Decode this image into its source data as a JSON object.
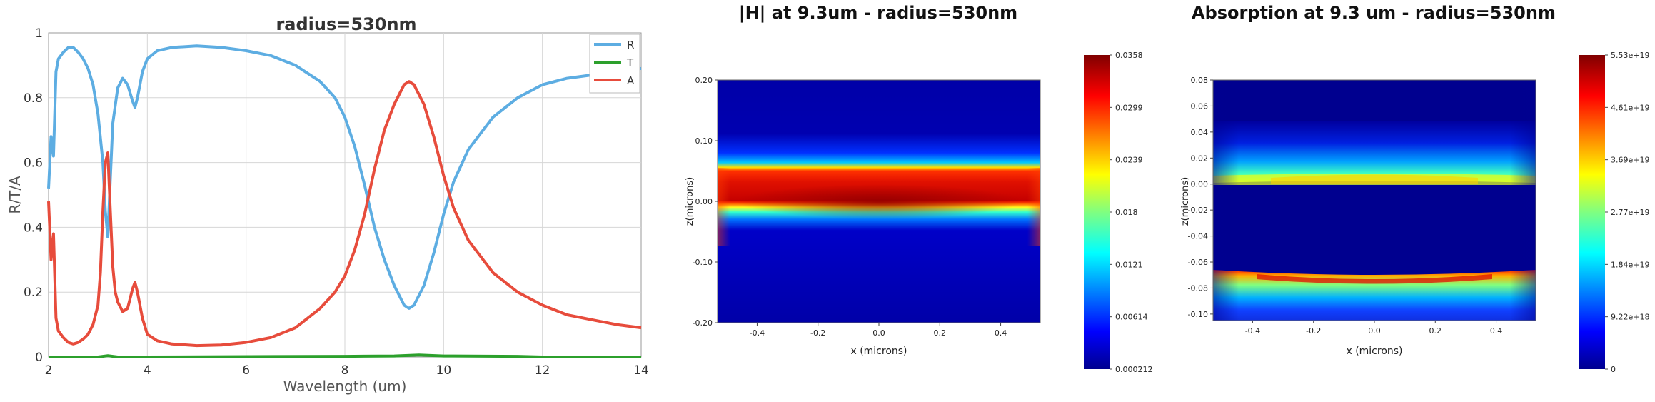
{
  "chart_data": [
    {
      "type": "line",
      "title": "radius=530nm",
      "xlabel": "Wavelength (um)",
      "ylabel": "R/T/A",
      "xlim": [
        2,
        14
      ],
      "ylim": [
        0,
        1
      ],
      "xticks": [
        "2",
        "4",
        "6",
        "8",
        "10",
        "12",
        "14"
      ],
      "yticks": [
        "0",
        "0.2",
        "0.4",
        "0.6",
        "0.8",
        "1"
      ],
      "grid": true,
      "legend": "top-right",
      "series": [
        {
          "name": "R",
          "color": "#5dade2",
          "x": [
            2.0,
            2.05,
            2.1,
            2.15,
            2.2,
            2.3,
            2.4,
            2.5,
            2.6,
            2.7,
            2.8,
            2.9,
            3.0,
            3.1,
            3.15,
            3.2,
            3.25,
            3.3,
            3.4,
            3.5,
            3.6,
            3.7,
            3.75,
            3.8,
            3.9,
            4.0,
            4.2,
            4.5,
            5.0,
            5.5,
            6.0,
            6.5,
            7.0,
            7.5,
            7.8,
            8.0,
            8.2,
            8.4,
            8.6,
            8.8,
            9.0,
            9.2,
            9.3,
            9.4,
            9.6,
            9.8,
            10.0,
            10.2,
            10.5,
            11.0,
            11.5,
            12.0,
            12.5,
            13.0,
            13.5,
            14.0
          ],
          "y": [
            0.52,
            0.68,
            0.62,
            0.88,
            0.92,
            0.94,
            0.955,
            0.955,
            0.94,
            0.92,
            0.89,
            0.84,
            0.75,
            0.6,
            0.45,
            0.37,
            0.55,
            0.72,
            0.83,
            0.86,
            0.84,
            0.79,
            0.77,
            0.8,
            0.88,
            0.92,
            0.945,
            0.955,
            0.96,
            0.955,
            0.945,
            0.93,
            0.9,
            0.85,
            0.8,
            0.74,
            0.65,
            0.53,
            0.4,
            0.3,
            0.22,
            0.16,
            0.15,
            0.16,
            0.22,
            0.32,
            0.44,
            0.54,
            0.64,
            0.74,
            0.8,
            0.84,
            0.86,
            0.87,
            0.88,
            0.89
          ]
        },
        {
          "name": "T",
          "color": "#2ca02c",
          "x": [
            2,
            3,
            3.2,
            3.4,
            4,
            8,
            9,
            9.5,
            10,
            11.5,
            12,
            14
          ],
          "y": [
            0,
            0,
            0.004,
            0,
            0,
            0.002,
            0.003,
            0.006,
            0.003,
            0.002,
            0,
            0
          ]
        },
        {
          "name": "A",
          "color": "#e74c3c",
          "x": [
            2.0,
            2.05,
            2.1,
            2.15,
            2.2,
            2.3,
            2.4,
            2.5,
            2.6,
            2.7,
            2.8,
            2.9,
            3.0,
            3.05,
            3.1,
            3.15,
            3.2,
            3.25,
            3.3,
            3.35,
            3.4,
            3.5,
            3.6,
            3.7,
            3.75,
            3.8,
            3.9,
            4.0,
            4.2,
            4.5,
            5.0,
            5.5,
            6.0,
            6.5,
            7.0,
            7.5,
            7.8,
            8.0,
            8.2,
            8.4,
            8.6,
            8.8,
            9.0,
            9.2,
            9.3,
            9.4,
            9.6,
            9.8,
            10.0,
            10.2,
            10.5,
            11.0,
            11.5,
            12.0,
            12.5,
            13.0,
            13.5,
            14.0
          ],
          "y": [
            0.48,
            0.3,
            0.38,
            0.12,
            0.08,
            0.06,
            0.045,
            0.04,
            0.045,
            0.055,
            0.07,
            0.1,
            0.16,
            0.26,
            0.45,
            0.6,
            0.63,
            0.45,
            0.28,
            0.2,
            0.17,
            0.14,
            0.15,
            0.21,
            0.23,
            0.2,
            0.12,
            0.07,
            0.05,
            0.04,
            0.035,
            0.037,
            0.045,
            0.06,
            0.09,
            0.15,
            0.2,
            0.25,
            0.33,
            0.44,
            0.58,
            0.7,
            0.78,
            0.84,
            0.85,
            0.84,
            0.78,
            0.68,
            0.56,
            0.46,
            0.36,
            0.26,
            0.2,
            0.16,
            0.13,
            0.115,
            0.1,
            0.09
          ]
        }
      ]
    },
    {
      "type": "heatmap",
      "title": "|H| at 9.3um - radius=530nm",
      "xlabel": "x (microns)",
      "ylabel": "z(microns)",
      "xlim": [
        -0.53,
        0.53
      ],
      "ylim": [
        -0.2,
        0.2
      ],
      "xticks": [
        "-0.4",
        "-0.2",
        "0.0",
        "0.2",
        "0.4"
      ],
      "yticks": [
        "0.20",
        "0.10",
        "0.00",
        "-0.10",
        "-0.20"
      ],
      "colormap": "jet",
      "colorbar_ticks": [
        "0.0358",
        "0.0299",
        "0.0239",
        "0.018",
        "0.0121",
        "0.00614",
        "0.000212"
      ]
    },
    {
      "type": "heatmap",
      "title": "Absorption at 9.3 um - radius=530nm",
      "xlabel": "x (microns)",
      "ylabel": "z(microns)",
      "xlim": [
        -0.53,
        0.53
      ],
      "ylim": [
        -0.105,
        0.08
      ],
      "xticks": [
        "-0.4",
        "-0.2",
        "0.0",
        "0.2",
        "0.4"
      ],
      "yticks": [
        "0.08",
        "0.06",
        "0.04",
        "0.02",
        "0.00",
        "-0.02",
        "-0.04",
        "-0.06",
        "-0.08",
        "-0.10"
      ],
      "colormap": "jet",
      "colorbar_ticks": [
        "5.53e+19",
        "4.61e+19",
        "3.69e+19",
        "2.77e+19",
        "1.84e+19",
        "9.22e+18",
        "0"
      ]
    }
  ]
}
